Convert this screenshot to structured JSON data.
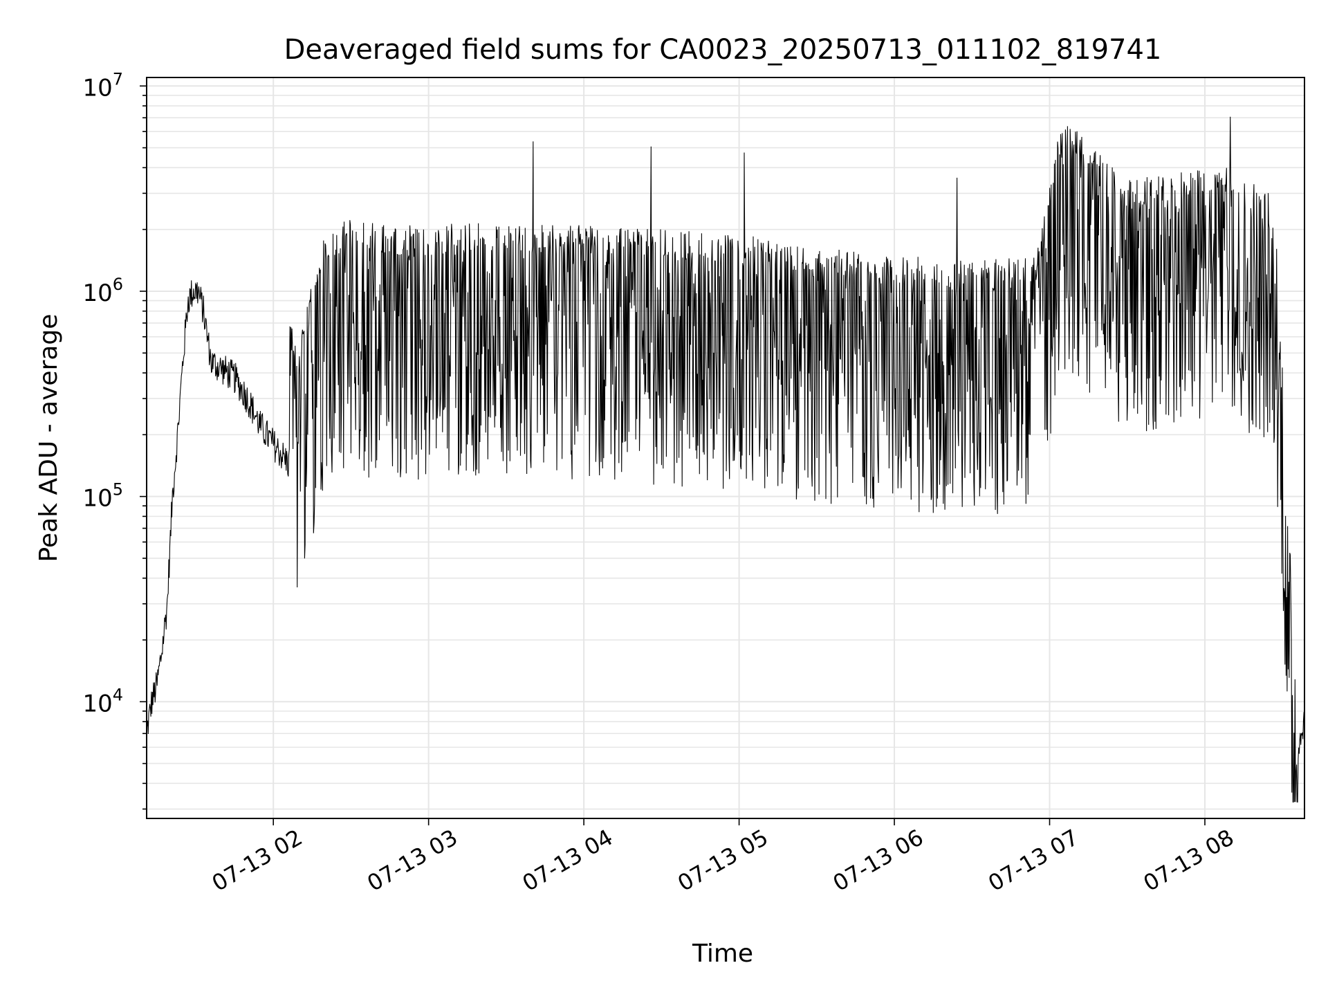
{
  "chart_data": {
    "type": "line",
    "title": "Deaveraged field sums for CA0023_20250713_011102_819741",
    "xlabel": "Time",
    "ylabel": "Peak ADU - average",
    "y_scale": "log",
    "ylim": [
      2700,
      11000000
    ],
    "xlim": [
      "2025-07-13 01:11:02",
      "2025-07-13 08:38:30"
    ],
    "x_ticks": [
      "07-13 02",
      "07-13 03",
      "07-13 04",
      "07-13 05",
      "07-13 06",
      "07-13 07",
      "07-13 08"
    ],
    "y_ticks": [
      {
        "base": "10",
        "exp": "4"
      },
      {
        "base": "10",
        "exp": "5"
      },
      {
        "base": "10",
        "exp": "6"
      },
      {
        "base": "10",
        "exp": "7"
      }
    ],
    "grid": true,
    "line_color": "#000000",
    "grid_color": "#e6e6e6",
    "series": [
      {
        "x": [
          "2025-07-13 01:11",
          "2025-07-13 01:13",
          "2025-07-13 01:15",
          "2025-07-13 01:17",
          "2025-07-13 01:19",
          "2025-07-13 01:21",
          "2025-07-13 01:23",
          "2025-07-13 01:25",
          "2025-07-13 01:27",
          "2025-07-13 01:29",
          "2025-07-13 01:31",
          "2025-07-13 01:33",
          "2025-07-13 01:36",
          "2025-07-13 01:40",
          "2025-07-13 01:45",
          "2025-07-13 01:50",
          "2025-07-13 01:55",
          "2025-07-13 02:00",
          "2025-07-13 02:05",
          "2025-07-13 02:10",
          "2025-07-13 02:20",
          "2025-07-13 02:30",
          "2025-07-13 02:45",
          "2025-07-13 03:00",
          "2025-07-13 03:30",
          "2025-07-13 04:00",
          "2025-07-13 04:30",
          "2025-07-13 05:00",
          "2025-07-13 05:30",
          "2025-07-13 06:00",
          "2025-07-13 06:30",
          "2025-07-13 06:55",
          "2025-07-13 07:05",
          "2025-07-13 07:30",
          "2025-07-13 08:00",
          "2025-07-13 08:20",
          "2025-07-13 08:27",
          "2025-07-13 08:30",
          "2025-07-13 08:32",
          "2025-07-13 08:34",
          "2025-07-13 08:36",
          "2025-07-13 08:38"
        ],
        "values": [
          7000,
          10000,
          12000,
          18000,
          30000,
          100000,
          200000,
          450000,
          900000,
          1000000,
          1000000,
          800000,
          450000,
          420000,
          380000,
          300000,
          220000,
          180000,
          150000,
          120000,
          400000,
          450000,
          420000,
          430000,
          430000,
          420000,
          400000,
          380000,
          330000,
          300000,
          280000,
          300000,
          1500000,
          700000,
          800000,
          900000,
          700000,
          150000,
          20000,
          8000,
          5500,
          8000
        ]
      }
    ],
    "annotations": []
  }
}
